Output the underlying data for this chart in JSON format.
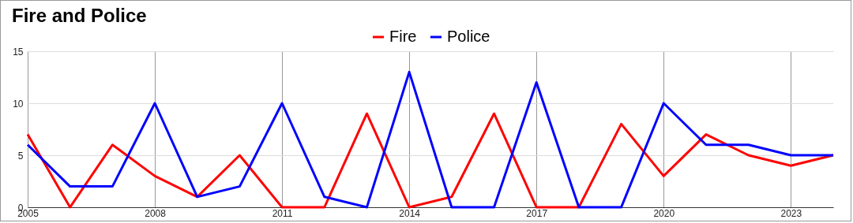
{
  "chart_data": {
    "type": "line",
    "title": "Fire and Police",
    "x": [
      2005,
      2006,
      2007,
      2008,
      2009,
      2010,
      2011,
      2012,
      2013,
      2014,
      2015,
      2016,
      2017,
      2018,
      2019,
      2020,
      2021,
      2022,
      2023,
      2024
    ],
    "series": [
      {
        "name": "Fire",
        "color": "#ff0000",
        "values": [
          7,
          0,
          6,
          3,
          1,
          5,
          0,
          0,
          9,
          0,
          1,
          9,
          0,
          0,
          8,
          3,
          7,
          5,
          4,
          5
        ]
      },
      {
        "name": "Police",
        "color": "#0000ff",
        "values": [
          6,
          2,
          2,
          10,
          1,
          2,
          10,
          1,
          0,
          13,
          0,
          0,
          12,
          0,
          0,
          10,
          6,
          6,
          5,
          5
        ]
      }
    ],
    "xlim": [
      2005,
      2024
    ],
    "xticks": [
      2005,
      2008,
      2011,
      2014,
      2017,
      2020,
      2023
    ],
    "ylim": [
      0,
      15
    ],
    "yticks": [
      0,
      5,
      10,
      15
    ],
    "grid": true,
    "legend": "top",
    "marker": "none",
    "line_style": "solid"
  }
}
